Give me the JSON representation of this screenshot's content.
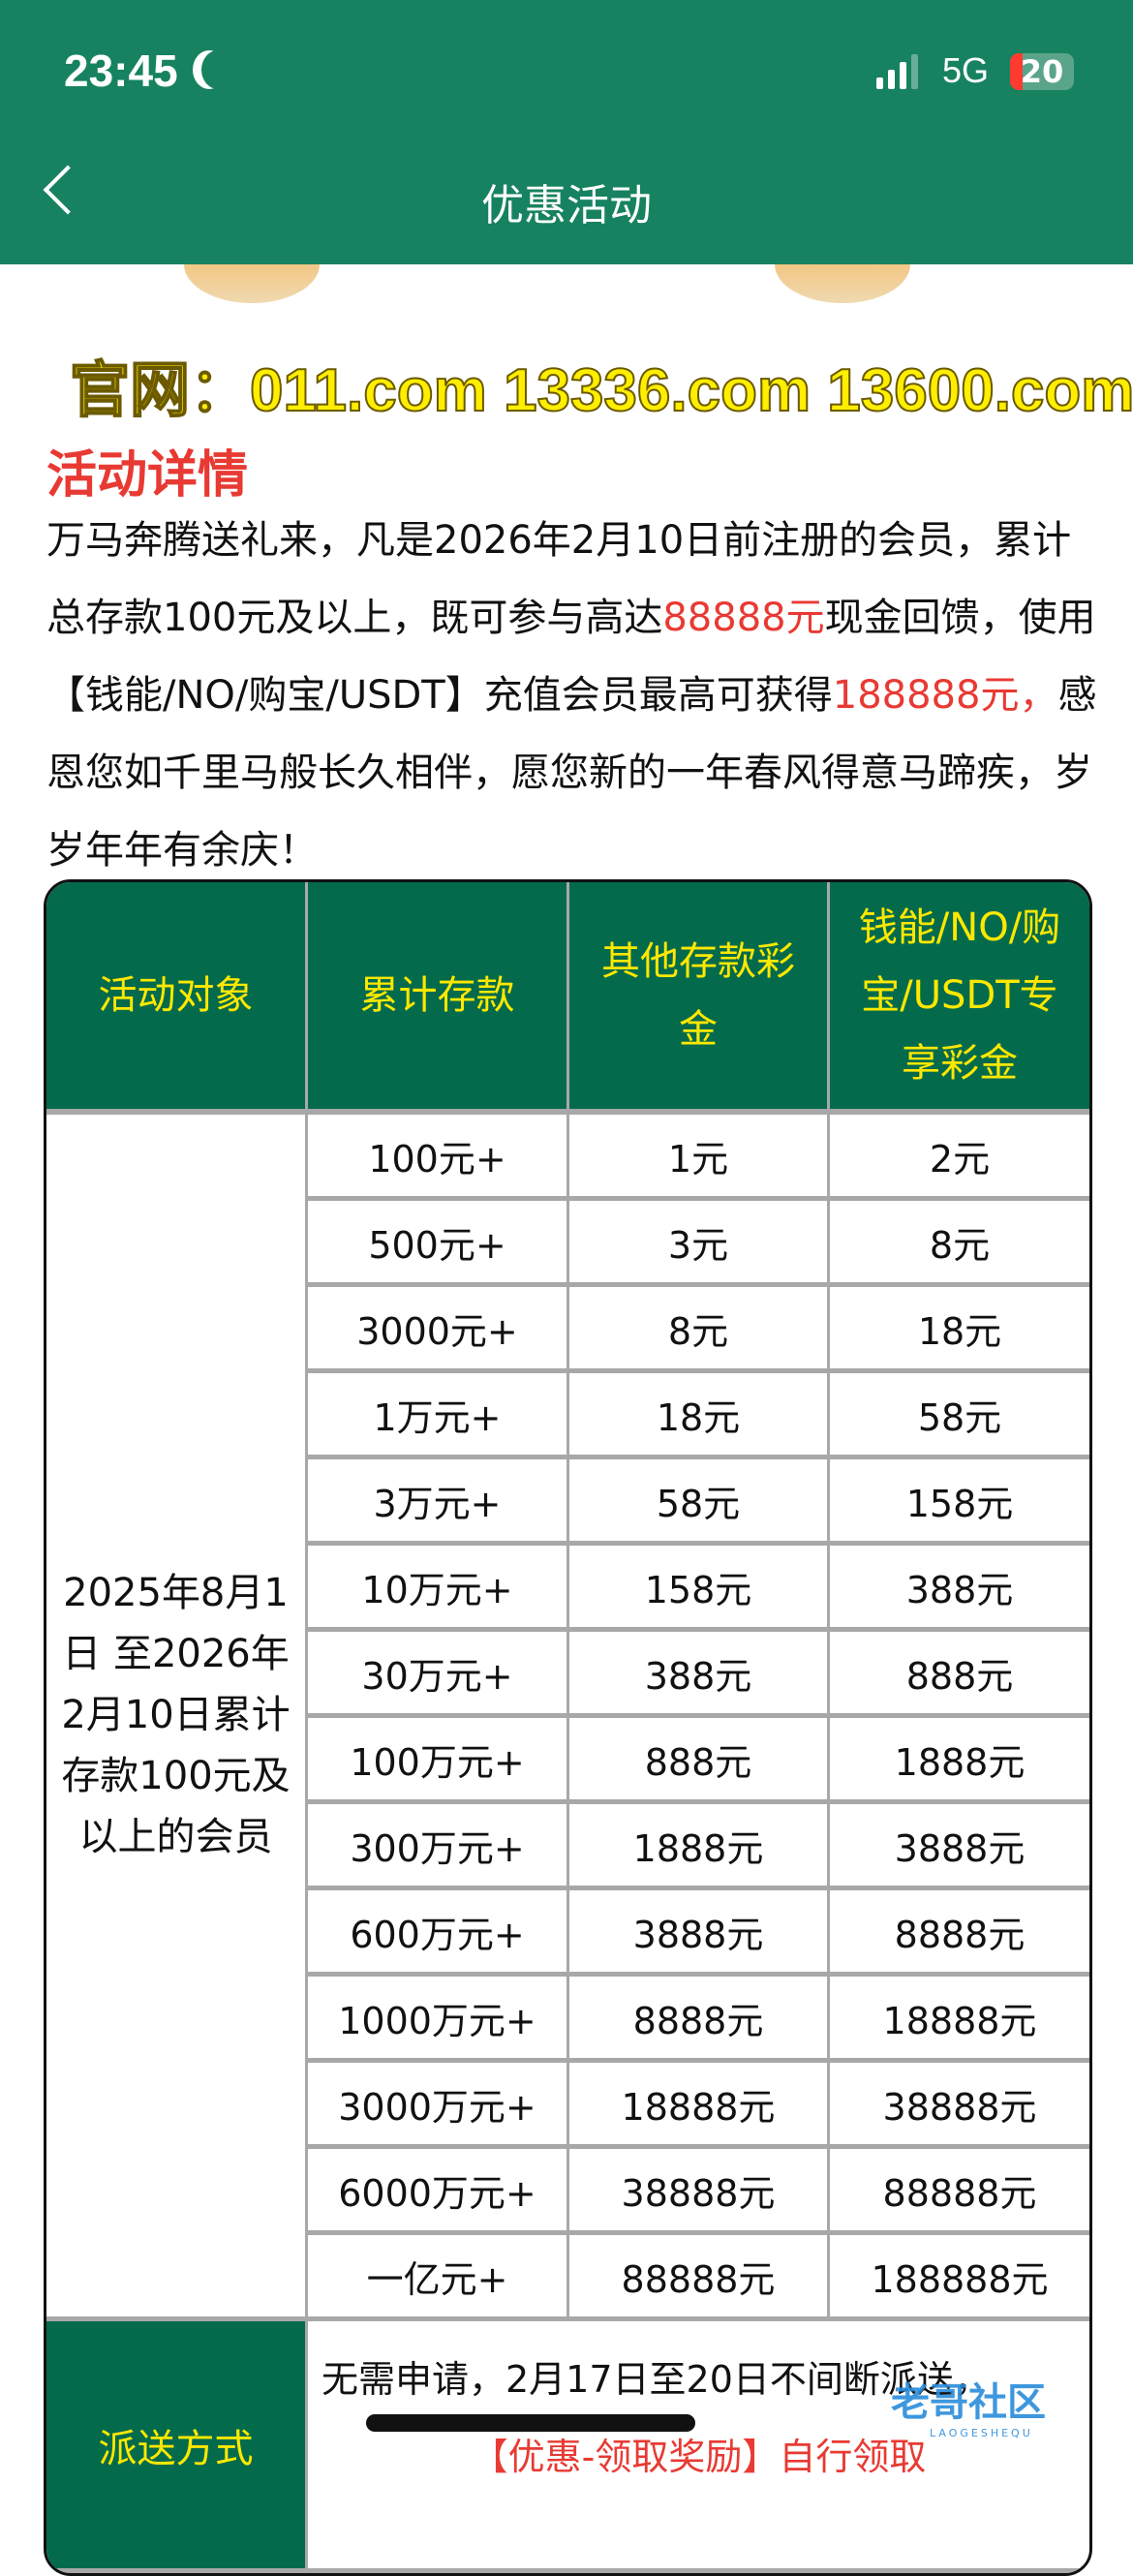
{
  "status_bar": {
    "time": "23:45",
    "network": "5G",
    "battery": "20",
    "battery_level": 20,
    "battery_color": "#ff3b30"
  },
  "nav": {
    "title": "优惠活动",
    "back_icon": "chevron-left-icon",
    "bg_color": "#178260"
  },
  "banner": {
    "site_text": "官网：011.com 13336.com 13600.com"
  },
  "details": {
    "heading": "活动详情",
    "segments": [
      {
        "text": "万马奔腾送礼来，凡是2026年2月10日前注册的会员，累计总存款100元及以上，既可参与高达",
        "red": false
      },
      {
        "text": "88888元",
        "red": true
      },
      {
        "text": "现金回馈，使用【钱能/NO/购宝/USDT】充值会员最高可获得",
        "red": false
      },
      {
        "text": "188888元，",
        "red": true
      },
      {
        "text": "感恩您如千里马般长久相伴，愿您新的一年春风得意马蹄疾，岁岁年年有余庆！",
        "red": false
      }
    ]
  },
  "table": {
    "headers": [
      "活动对象",
      "累计存款",
      "其他存款彩金",
      "钱能/NO/购宝/USDT专享彩金"
    ],
    "target": "2025年8月1日 至2026年2月10日累计存款100元及以上的会员",
    "rows": [
      [
        "100元+",
        "1元",
        "2元"
      ],
      [
        "500元+",
        "3元",
        "8元"
      ],
      [
        "3000元+",
        "8元",
        "18元"
      ],
      [
        "1万元+",
        "18元",
        "58元"
      ],
      [
        "3万元+",
        "58元",
        "158元"
      ],
      [
        "10万元+",
        "158元",
        "388元"
      ],
      [
        "30万元+",
        "388元",
        "888元"
      ],
      [
        "100万元+",
        "888元",
        "1888元"
      ],
      [
        "300万元+",
        "1888元",
        "3888元"
      ],
      [
        "600万元+",
        "3888元",
        "8888元"
      ],
      [
        "1000万元+",
        "8888元",
        "18888元"
      ],
      [
        "3000万元+",
        "18888元",
        "38888元"
      ],
      [
        "6000万元+",
        "38888元",
        "88888元"
      ],
      [
        "一亿元+",
        "88888元",
        "188888元"
      ]
    ],
    "method_label": "派送方式",
    "method_text": "无需申请，2月17日至20日不间断派送，",
    "method_red": "【优惠-领取奖励】自行领取",
    "header_bg": "#036b4c",
    "header_text_color": "#ffe800"
  },
  "watermark": {
    "text": "老哥社区",
    "sub": "LAOGESHEQU"
  }
}
